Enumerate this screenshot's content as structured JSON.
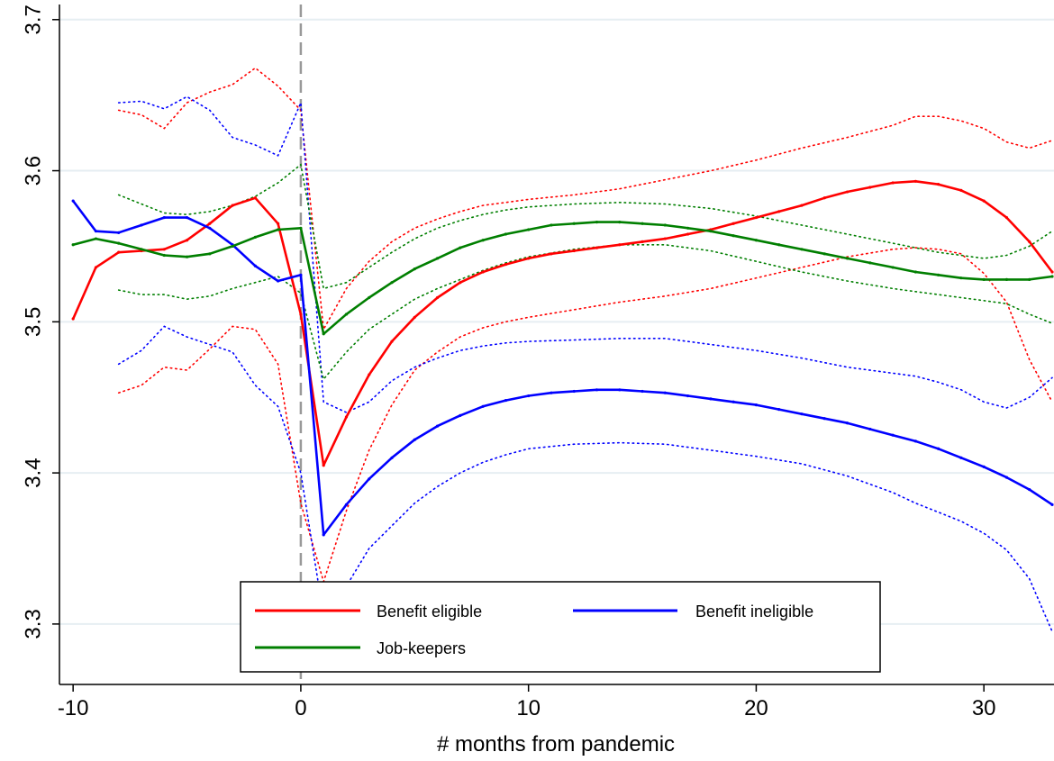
{
  "chart_data": {
    "type": "line",
    "title": "",
    "xlabel": "# months from pandemic",
    "ylabel": "",
    "xlim": [
      -10.6,
      33
    ],
    "ylim": [
      3.26,
      3.71
    ],
    "xticks": [
      -10,
      0,
      10,
      20,
      30
    ],
    "yticks": [
      3.3,
      3.4,
      3.5,
      3.6,
      3.7
    ],
    "grid": true,
    "event_line_x": 0,
    "legend_position": "bottom-center",
    "colors": {
      "benefit_eligible": "#ff0000",
      "benefit_ineligible": "#0000ff",
      "job_keepers": "#007f00",
      "event_line": "#999999",
      "grid": "#e6eef2"
    },
    "series": [
      {
        "key": "benefit_eligible",
        "name": "Benefit eligible",
        "color": "#ff0000",
        "x": [
          -10,
          -9,
          -8,
          -7,
          -6,
          -5,
          -4,
          -3,
          -2,
          -1,
          0,
          1,
          2,
          3,
          4,
          5,
          6,
          7,
          8,
          9,
          10,
          11,
          12,
          13,
          14,
          15,
          16,
          17,
          18,
          19,
          20,
          21,
          22,
          23,
          24,
          25,
          26,
          27,
          28,
          29,
          30,
          31,
          32,
          33
        ],
        "values": [
          3.502,
          3.536,
          3.546,
          3.547,
          3.548,
          3.554,
          3.565,
          3.577,
          3.582,
          3.565,
          3.505,
          3.405,
          3.437,
          3.465,
          3.487,
          3.503,
          3.516,
          3.526,
          3.533,
          3.538,
          3.542,
          3.545,
          3.547,
          3.549,
          3.551,
          3.553,
          3.555,
          3.558,
          3.561,
          3.565,
          3.569,
          3.573,
          3.577,
          3.582,
          3.586,
          3.589,
          3.592,
          3.593,
          3.591,
          3.587,
          3.58,
          3.569,
          3.553,
          3.533
        ],
        "ci_x": [
          -8,
          -7,
          -6,
          -5,
          -4,
          -3,
          -2,
          -1,
          0,
          1,
          2,
          3,
          4,
          5,
          6,
          7,
          8,
          9,
          10,
          12,
          14,
          16,
          18,
          20,
          22,
          24,
          26,
          27,
          28,
          29,
          30,
          31,
          32,
          33
        ],
        "ci_upper": [
          3.64,
          3.637,
          3.628,
          3.645,
          3.652,
          3.657,
          3.668,
          3.656,
          3.64,
          3.495,
          3.522,
          3.54,
          3.553,
          3.562,
          3.568,
          3.573,
          3.577,
          3.579,
          3.581,
          3.584,
          3.588,
          3.594,
          3.6,
          3.607,
          3.615,
          3.622,
          3.63,
          3.636,
          3.636,
          3.633,
          3.628,
          3.619,
          3.615,
          3.62
        ],
        "ci_lower": [
          3.453,
          3.458,
          3.47,
          3.468,
          3.482,
          3.497,
          3.495,
          3.472,
          3.38,
          3.328,
          3.375,
          3.415,
          3.445,
          3.468,
          3.48,
          3.49,
          3.496,
          3.5,
          3.503,
          3.508,
          3.513,
          3.517,
          3.522,
          3.529,
          3.536,
          3.543,
          3.548,
          3.549,
          3.548,
          3.545,
          3.532,
          3.513,
          3.475,
          3.447
        ]
      },
      {
        "key": "benefit_ineligible",
        "name": "Benefit ineligible",
        "color": "#0000ff",
        "x": [
          -10,
          -9,
          -8,
          -7,
          -6,
          -5,
          -4,
          -3,
          -2,
          -1,
          0,
          1,
          2,
          3,
          4,
          5,
          6,
          7,
          8,
          9,
          10,
          11,
          12,
          13,
          14,
          15,
          16,
          17,
          18,
          19,
          20,
          21,
          22,
          23,
          24,
          25,
          26,
          27,
          28,
          29,
          30,
          31,
          32,
          33
        ],
        "values": [
          3.58,
          3.56,
          3.559,
          3.564,
          3.569,
          3.569,
          3.562,
          3.551,
          3.537,
          3.527,
          3.531,
          3.359,
          3.379,
          3.396,
          3.41,
          3.422,
          3.431,
          3.438,
          3.444,
          3.448,
          3.451,
          3.453,
          3.454,
          3.455,
          3.455,
          3.454,
          3.453,
          3.451,
          3.449,
          3.447,
          3.445,
          3.442,
          3.439,
          3.436,
          3.433,
          3.429,
          3.425,
          3.421,
          3.416,
          3.41,
          3.404,
          3.397,
          3.389,
          3.379
        ],
        "ci_x": [
          -8,
          -7,
          -6,
          -5,
          -4,
          -3,
          -2,
          -1,
          0,
          1,
          2,
          3,
          4,
          5,
          6,
          7,
          8,
          9,
          10,
          12,
          14,
          16,
          18,
          20,
          22,
          24,
          26,
          27,
          28,
          29,
          30,
          31,
          32,
          33
        ],
        "ci_upper": [
          3.645,
          3.646,
          3.641,
          3.649,
          3.64,
          3.622,
          3.617,
          3.61,
          3.645,
          3.447,
          3.44,
          3.447,
          3.461,
          3.47,
          3.476,
          3.481,
          3.484,
          3.486,
          3.487,
          3.488,
          3.489,
          3.489,
          3.485,
          3.481,
          3.476,
          3.47,
          3.466,
          3.464,
          3.46,
          3.455,
          3.447,
          3.443,
          3.45,
          3.463
        ],
        "ci_lower": [
          3.472,
          3.481,
          3.497,
          3.49,
          3.485,
          3.48,
          3.458,
          3.444,
          3.4,
          3.305,
          3.325,
          3.35,
          3.365,
          3.38,
          3.391,
          3.4,
          3.407,
          3.412,
          3.416,
          3.419,
          3.42,
          3.419,
          3.415,
          3.411,
          3.406,
          3.398,
          3.387,
          3.38,
          3.374,
          3.368,
          3.36,
          3.349,
          3.33,
          3.295
        ]
      },
      {
        "key": "job_keepers",
        "name": "Job-keepers",
        "color": "#007f00",
        "x": [
          -10,
          -9,
          -8,
          -7,
          -6,
          -5,
          -4,
          -3,
          -2,
          -1,
          0,
          1,
          2,
          3,
          4,
          5,
          6,
          7,
          8,
          9,
          10,
          11,
          12,
          13,
          14,
          15,
          16,
          17,
          18,
          19,
          20,
          21,
          22,
          23,
          24,
          25,
          26,
          27,
          28,
          29,
          30,
          31,
          32,
          33
        ],
        "values": [
          3.551,
          3.555,
          3.552,
          3.548,
          3.544,
          3.543,
          3.545,
          3.55,
          3.556,
          3.561,
          3.562,
          3.492,
          3.505,
          3.516,
          3.526,
          3.535,
          3.542,
          3.549,
          3.554,
          3.558,
          3.561,
          3.564,
          3.565,
          3.566,
          3.566,
          3.565,
          3.564,
          3.562,
          3.56,
          3.557,
          3.554,
          3.551,
          3.548,
          3.545,
          3.542,
          3.539,
          3.536,
          3.533,
          3.531,
          3.529,
          3.528,
          3.528,
          3.528,
          3.53
        ],
        "ci_x": [
          -8,
          -7,
          -6,
          -5,
          -4,
          -3,
          -2,
          -1,
          0,
          1,
          2,
          3,
          4,
          5,
          6,
          7,
          8,
          9,
          10,
          12,
          14,
          16,
          18,
          20,
          22,
          24,
          26,
          27,
          28,
          29,
          30,
          31,
          32,
          33
        ],
        "ci_upper": [
          3.584,
          3.578,
          3.572,
          3.571,
          3.573,
          3.577,
          3.583,
          3.592,
          3.604,
          3.522,
          3.526,
          3.536,
          3.546,
          3.555,
          3.562,
          3.567,
          3.571,
          3.574,
          3.576,
          3.578,
          3.579,
          3.578,
          3.575,
          3.57,
          3.564,
          3.558,
          3.552,
          3.549,
          3.546,
          3.544,
          3.542,
          3.544,
          3.55,
          3.56
        ],
        "ci_lower": [
          3.521,
          3.518,
          3.518,
          3.515,
          3.517,
          3.522,
          3.526,
          3.53,
          3.519,
          3.462,
          3.48,
          3.495,
          3.505,
          3.515,
          3.522,
          3.528,
          3.534,
          3.539,
          3.543,
          3.548,
          3.551,
          3.551,
          3.547,
          3.54,
          3.533,
          3.527,
          3.522,
          3.52,
          3.518,
          3.516,
          3.514,
          3.512,
          3.505,
          3.499
        ]
      }
    ]
  }
}
